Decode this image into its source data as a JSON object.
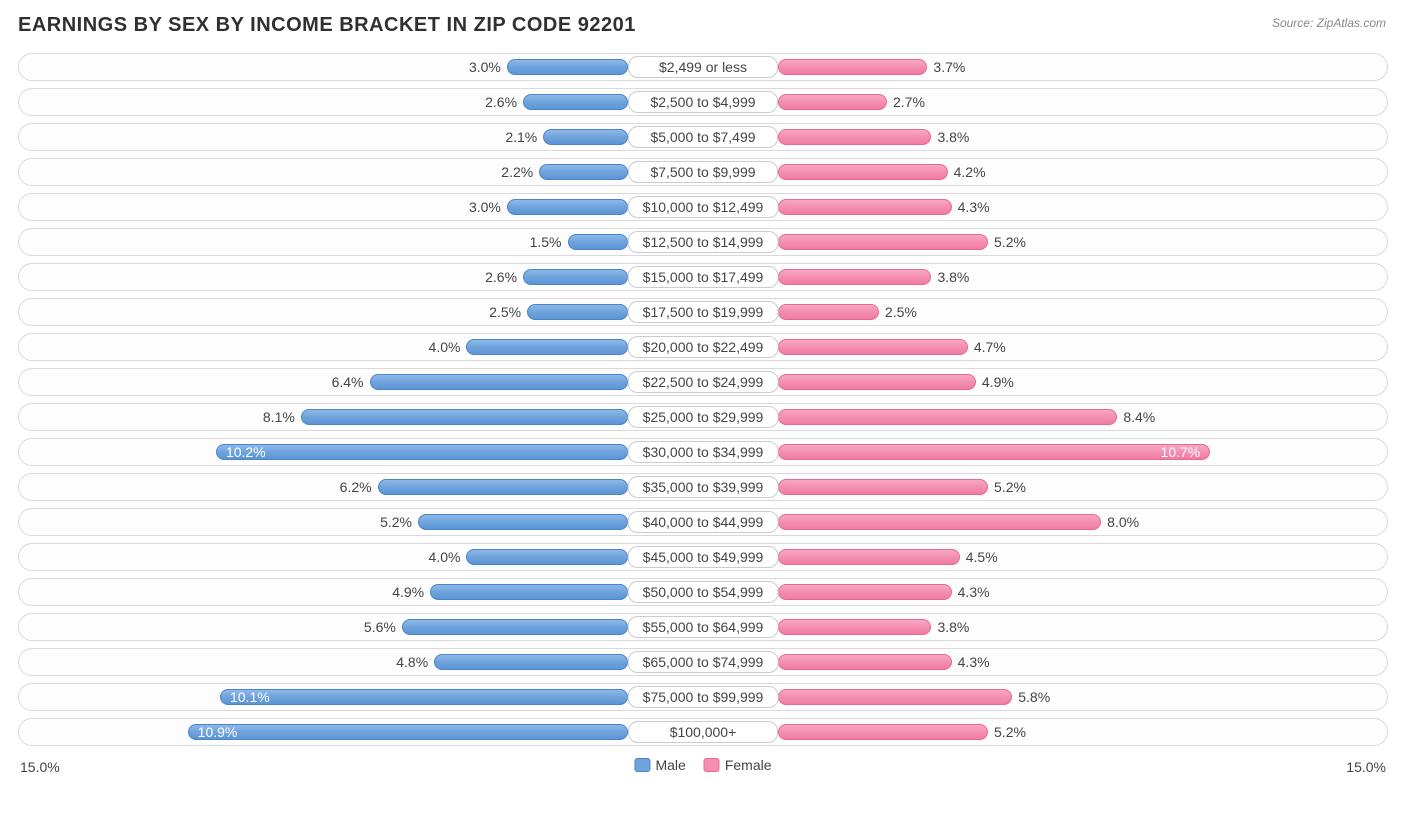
{
  "title": "EARNINGS BY SEX BY INCOME BRACKET IN ZIP CODE 92201",
  "source": "Source: ZipAtlas.com",
  "chart": {
    "type": "diverging-bar",
    "max_pct": 15.0,
    "axis_left_label": "15.0%",
    "axis_right_label": "15.0%",
    "male_color": "#6fa3dd",
    "male_border": "#4a85c7",
    "female_color": "#f48fb1",
    "female_border": "#e86796",
    "track_border": "#d9d9d9",
    "background": "#ffffff",
    "label_fontsize": 14,
    "legend": {
      "male": "Male",
      "female": "Female"
    },
    "inside_label_threshold": 9.0,
    "rows": [
      {
        "bracket": "$2,499 or less",
        "male": 3.0,
        "female": 3.7
      },
      {
        "bracket": "$2,500 to $4,999",
        "male": 2.6,
        "female": 2.7
      },
      {
        "bracket": "$5,000 to $7,499",
        "male": 2.1,
        "female": 3.8
      },
      {
        "bracket": "$7,500 to $9,999",
        "male": 2.2,
        "female": 4.2
      },
      {
        "bracket": "$10,000 to $12,499",
        "male": 3.0,
        "female": 4.3
      },
      {
        "bracket": "$12,500 to $14,999",
        "male": 1.5,
        "female": 5.2
      },
      {
        "bracket": "$15,000 to $17,499",
        "male": 2.6,
        "female": 3.8
      },
      {
        "bracket": "$17,500 to $19,999",
        "male": 2.5,
        "female": 2.5
      },
      {
        "bracket": "$20,000 to $22,499",
        "male": 4.0,
        "female": 4.7
      },
      {
        "bracket": "$22,500 to $24,999",
        "male": 6.4,
        "female": 4.9
      },
      {
        "bracket": "$25,000 to $29,999",
        "male": 8.1,
        "female": 8.4
      },
      {
        "bracket": "$30,000 to $34,999",
        "male": 10.2,
        "female": 10.7
      },
      {
        "bracket": "$35,000 to $39,999",
        "male": 6.2,
        "female": 5.2
      },
      {
        "bracket": "$40,000 to $44,999",
        "male": 5.2,
        "female": 8.0
      },
      {
        "bracket": "$45,000 to $49,999",
        "male": 4.0,
        "female": 4.5
      },
      {
        "bracket": "$50,000 to $54,999",
        "male": 4.9,
        "female": 4.3
      },
      {
        "bracket": "$55,000 to $64,999",
        "male": 5.6,
        "female": 3.8
      },
      {
        "bracket": "$65,000 to $74,999",
        "male": 4.8,
        "female": 4.3
      },
      {
        "bracket": "$75,000 to $99,999",
        "male": 10.1,
        "female": 5.8
      },
      {
        "bracket": "$100,000+",
        "male": 10.9,
        "female": 5.2
      }
    ]
  }
}
